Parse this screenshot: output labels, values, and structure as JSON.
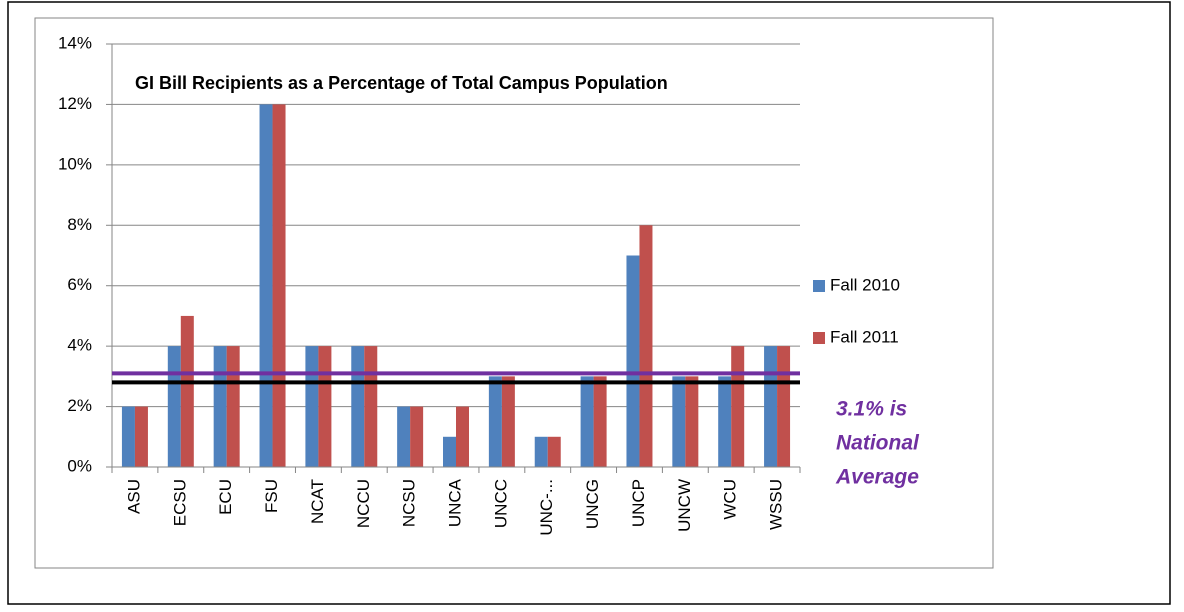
{
  "chart_data": {
    "type": "bar",
    "title": "GI Bill Recipients as a Percentage of Total Campus Population",
    "categories": [
      "ASU",
      "ECSU",
      "ECU",
      "FSU",
      "NCAT",
      "NCCU",
      "NCSU",
      "UNCA",
      "UNCC",
      "UNC-...",
      "UNCG",
      "UNCP",
      "UNCW",
      "WCU",
      "WSSU"
    ],
    "series": [
      {
        "name": "Fall 2010",
        "color": "#4f81bd",
        "values": [
          2,
          4,
          4,
          12,
          4,
          4,
          2,
          1,
          3,
          1,
          3,
          7,
          3,
          3,
          4
        ]
      },
      {
        "name": "Fall 2011",
        "color": "#c0504d",
        "values": [
          2,
          5,
          4,
          12,
          4,
          4,
          2,
          2,
          3,
          1,
          3,
          8,
          3,
          4,
          4
        ]
      }
    ],
    "ylim": [
      0,
      14
    ],
    "yticks": [
      {
        "value": 0,
        "label": "0%"
      },
      {
        "value": 2,
        "label": "2%"
      },
      {
        "value": 4,
        "label": "4%"
      },
      {
        "value": 6,
        "label": "6%"
      },
      {
        "value": 8,
        "label": "8%"
      },
      {
        "value": 10,
        "label": "10%"
      },
      {
        "value": 12,
        "label": "12%"
      },
      {
        "value": 14,
        "label": "14%"
      }
    ],
    "grid": true,
    "legend": "right",
    "reference_lines": [
      {
        "value": 3.1,
        "color": "#7030a0"
      },
      {
        "value": 2.8,
        "color": "#000000"
      }
    ],
    "annotation": {
      "lines": [
        "3.1% is",
        "National",
        "Average"
      ],
      "color": "#7030a0"
    }
  }
}
